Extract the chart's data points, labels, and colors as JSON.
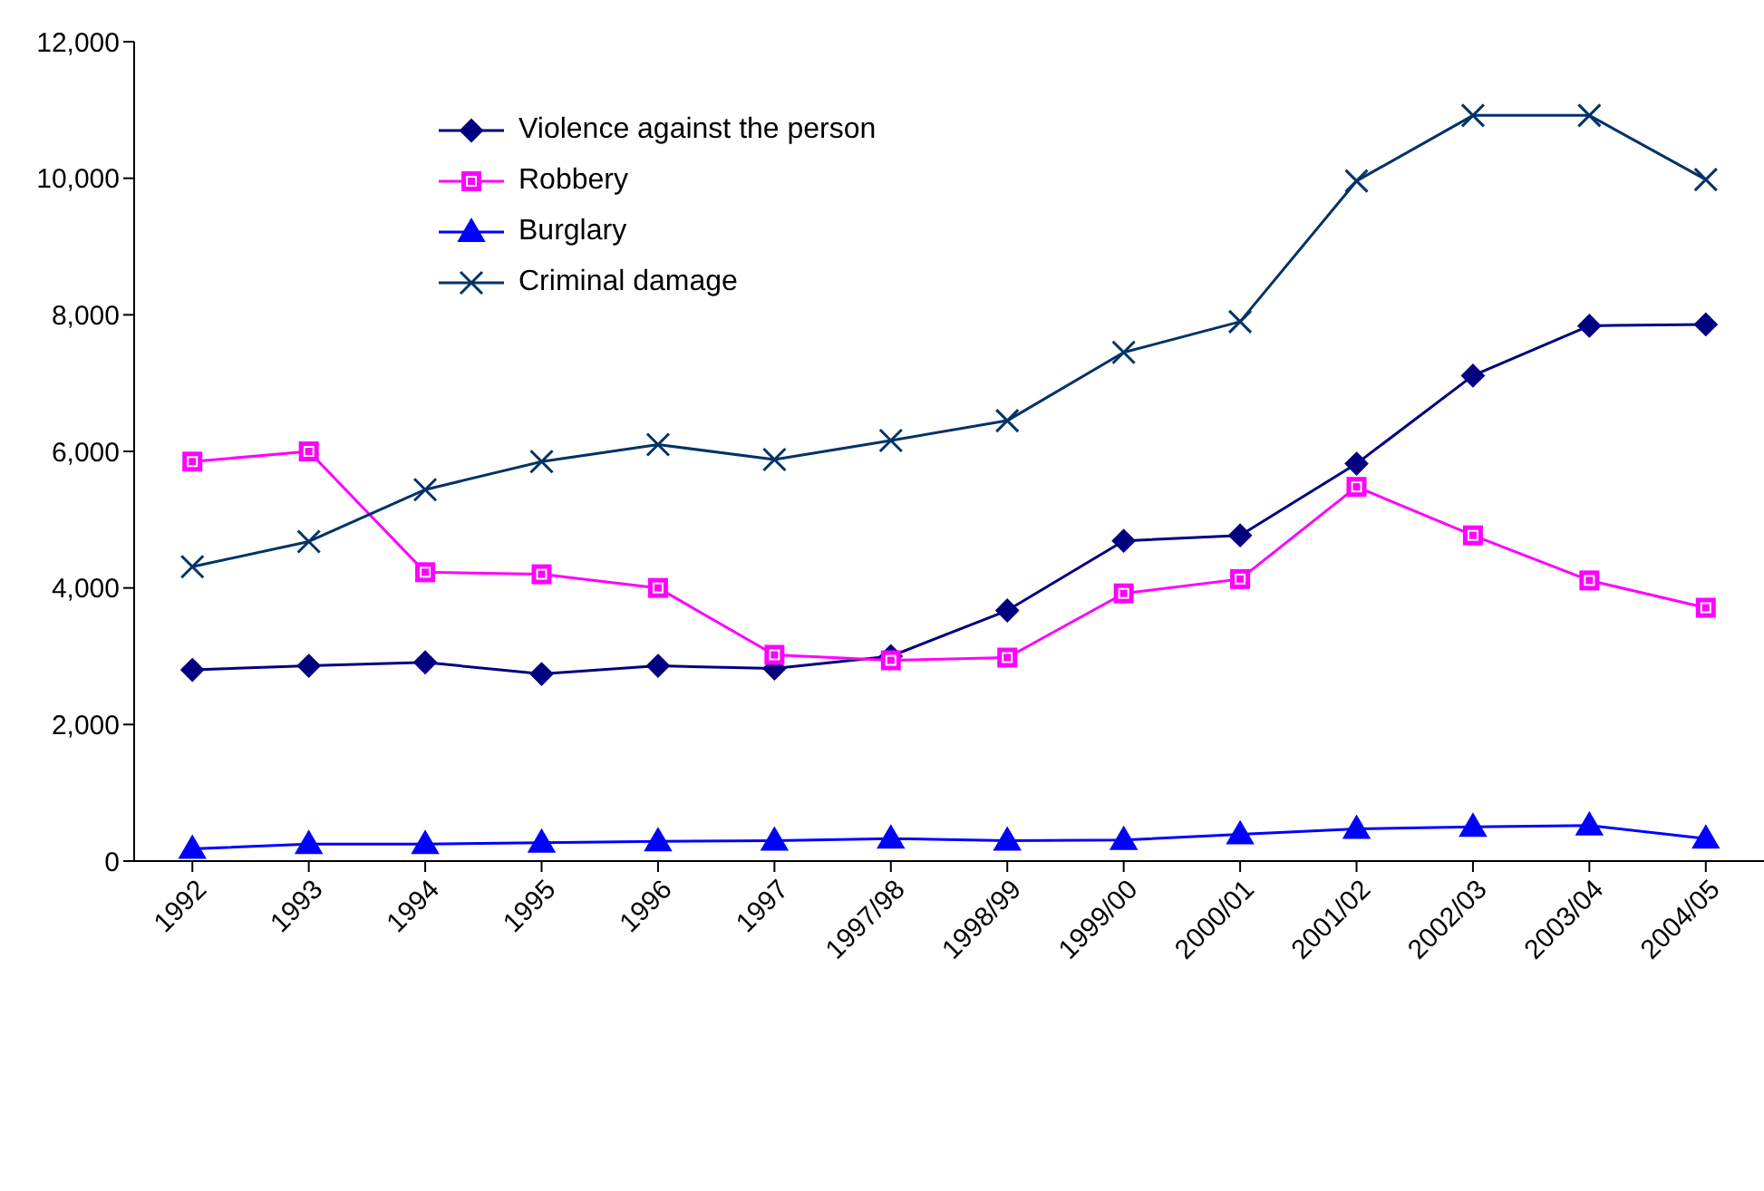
{
  "chart_data": {
    "type": "line",
    "categories": [
      "1992",
      "1993",
      "1994",
      "1995",
      "1996",
      "1997",
      "1997/98",
      "1998/99",
      "1999/00",
      "2000/01",
      "2001/02",
      "2002/03",
      "2003/04",
      "2004/05"
    ],
    "series": [
      {
        "name": "Violence against the person",
        "color": "#000080",
        "marker": "diamond",
        "values": [
          2800,
          2860,
          2910,
          2740,
          2860,
          2820,
          3000,
          3670,
          4690,
          4770,
          5820,
          7110,
          7840,
          7860
        ]
      },
      {
        "name": "Robbery",
        "color": "#ff00ff",
        "marker": "square",
        "values": [
          5850,
          6000,
          4230,
          4200,
          4000,
          3020,
          2940,
          2980,
          3920,
          4130,
          5480,
          4770,
          4110,
          3710
        ]
      },
      {
        "name": "Burglary",
        "color": "#0000ff",
        "marker": "triangle",
        "values": [
          180,
          250,
          250,
          270,
          290,
          300,
          330,
          300,
          310,
          390,
          470,
          500,
          520,
          330
        ]
      },
      {
        "name": "Criminal damage",
        "color": "#003366",
        "marker": "cross",
        "values": [
          4310,
          4680,
          5440,
          5850,
          6100,
          5880,
          6160,
          6450,
          7450,
          7900,
          9960,
          10920,
          10920,
          9980
        ]
      }
    ],
    "ylim": [
      0,
      12000
    ],
    "yticks": [
      0,
      {
        "value": 2000,
        "label": "2,000"
      },
      {
        "value": 4000,
        "label": "4,000"
      },
      {
        "value": 6000,
        "label": "6,000"
      },
      {
        "value": 8000,
        "label": "8,000"
      },
      {
        "value": 10000,
        "label": "10,000"
      },
      {
        "value": 12000,
        "label": "12,000"
      }
    ],
    "legend": "top left"
  }
}
